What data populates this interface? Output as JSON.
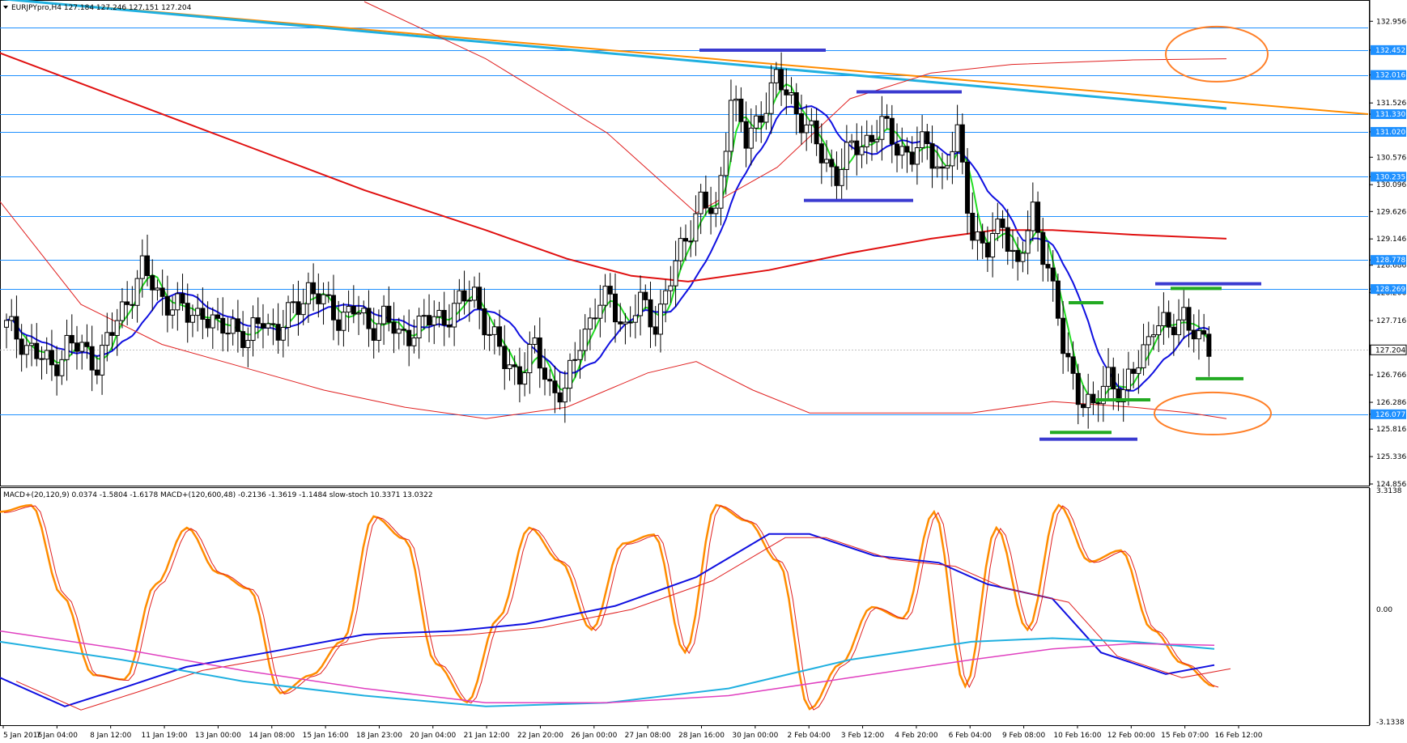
{
  "chart_data": [
    {
      "type": "candlestick",
      "title": "EURJPYpro,H4  127.184 127.246 127.151 127.204",
      "symbol": "EURJPYpro",
      "timeframe": "H4",
      "last_bar": {
        "open": 127.184,
        "high": 127.246,
        "low": 127.151,
        "close": 127.204
      },
      "ylim": [
        124.856,
        133.3
      ],
      "y_ticks": [
        "132.956",
        "132.452",
        "132.016",
        "131.526",
        "131.330",
        "131.020",
        "130.576",
        "130.235",
        "130.096",
        "129.626",
        "129.146",
        "128.778",
        "128.686",
        "128.269",
        "128.206",
        "127.716",
        "127.204",
        "126.766",
        "126.286",
        "126.077",
        "125.816",
        "125.336",
        "124.856"
      ],
      "highlighted_levels": [
        {
          "value": 132.452,
          "label": "132.452"
        },
        {
          "value": 132.016,
          "label": "132.016"
        },
        {
          "value": 131.33,
          "label": "131.330"
        },
        {
          "value": 131.02,
          "label": "131.020"
        },
        {
          "value": 130.235,
          "label": "130.235"
        },
        {
          "value": 128.778,
          "label": "128.778"
        },
        {
          "value": 128.269,
          "label": "128.269"
        },
        {
          "value": 126.077,
          "label": "126.077"
        }
      ],
      "current_price": {
        "value": 127.204,
        "label": "127.204"
      },
      "horizontal_lines": [
        132.85,
        132.452,
        132.016,
        131.33,
        131.02,
        130.235,
        129.55,
        128.778,
        128.269,
        126.077
      ],
      "x_labels": [
        "5 Jan 2016",
        "7 Jan 04:00",
        "8 Jan 12:00",
        "11 Jan 19:00",
        "13 Jan 00:00",
        "14 Jan 08:00",
        "15 Jan 16:00",
        "18 Jan 23:00",
        "20 Jan 04:00",
        "21 Jan 12:00",
        "22 Jan 20:00",
        "26 Jan 00:00",
        "27 Jan 08:00",
        "28 Jan 16:00",
        "30 Jan 00:00",
        "2 Feb 04:00",
        "3 Feb 12:00",
        "4 Feb 20:00",
        "6 Feb 04:00",
        "9 Feb 08:00",
        "10 Feb 16:00",
        "12 Feb 00:00",
        "15 Feb 07:00",
        "16 Feb 12:00"
      ],
      "close_path": [
        127.6,
        127.4,
        127.1,
        126.9,
        127.3,
        127.2,
        127.0,
        127.5,
        128.1,
        128.6,
        128.2,
        128.0,
        127.8,
        127.9,
        127.5,
        127.7,
        127.3,
        127.8,
        127.5,
        127.9,
        128.3,
        128.0,
        127.8,
        127.9,
        127.6,
        127.8,
        127.4,
        127.6,
        127.7,
        127.8,
        128.0,
        128.2,
        127.5,
        127.0,
        126.8,
        127.2,
        126.6,
        126.4,
        127.4,
        127.9,
        128.1,
        127.6,
        128.0,
        127.7,
        128.4,
        129.2,
        129.8,
        129.5,
        131.7,
        130.8,
        131.4,
        131.9,
        131.6,
        131.1,
        130.6,
        130.3,
        130.7,
        130.9,
        131.1,
        130.8,
        130.6,
        130.8,
        130.3,
        130.9,
        129.3,
        128.9,
        129.5,
        128.6,
        129.6,
        128.7,
        127.2,
        126.5,
        126.1,
        126.8,
        126.4,
        127.0,
        127.7,
        127.5,
        127.9,
        127.3,
        127.2
      ]
    },
    {
      "type": "line",
      "title": "MACD+(20,120,9) 0.0374 -1.5804 -1.6178  MACD+(120,600,48) -0.2136 -1.3619 -1.1484  slow-stoch 10.3371 13.0322",
      "ylim": [
        -3.1338,
        3.3138
      ],
      "y_ticks": [
        "3.3138",
        "0.00",
        "-3.1338"
      ],
      "stoch_values": [
        92,
        95,
        55,
        20,
        18,
        60,
        85,
        65,
        58,
        12,
        20,
        35,
        90,
        80,
        25,
        8,
        45,
        85,
        70,
        40,
        78,
        82,
        30,
        95,
        88,
        70,
        5,
        25,
        50,
        45,
        92,
        15,
        85,
        40,
        95,
        70,
        75,
        40,
        25,
        15
      ]
    }
  ]
}
